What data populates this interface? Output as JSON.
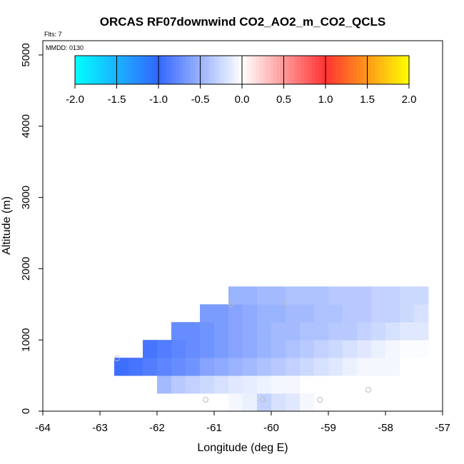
{
  "chart_data": {
    "type": "heatmap",
    "title": "ORCAS RF07downwind CO2_AO2_m_CO2_QCLS",
    "xlabel": "Longitude (deg E)",
    "ylabel": "Altitude (m)",
    "xlim": [
      -64,
      -57
    ],
    "ylim": [
      0,
      5200
    ],
    "x_ticks": [
      -64,
      -63,
      -62,
      -61,
      -60,
      -59,
      -58,
      -57
    ],
    "y_ticks": [
      0,
      1000,
      2000,
      3000,
      4000,
      5000
    ],
    "annotations": {
      "flights": "Flts: 7",
      "date": "MMDD: 0130"
    },
    "colorbar": {
      "range": [
        -2,
        2
      ],
      "ticks": [
        "-2.0",
        "-1.5",
        "-1.0",
        "-0.5",
        "0.0",
        "0.5",
        "1.0",
        "1.5",
        "2.0"
      ],
      "colors": [
        "#00ffff",
        "#3366ff",
        "#ffffff",
        "#ff3333",
        "#ffff00"
      ]
    },
    "cell_size": {
      "lon": 0.25,
      "alt": 250
    },
    "rows": [
      {
        "alt": 0,
        "lon0": -60.75,
        "values": [
          -0.05,
          -0.1,
          -0.3,
          -0.2,
          -0.15,
          -0.05
        ]
      },
      {
        "alt": 250,
        "lon0": -62.0,
        "values": [
          -0.45,
          -0.35,
          -0.3,
          -0.25,
          -0.2,
          -0.15,
          -0.12,
          -0.08,
          -0.05,
          -0.05
        ]
      },
      {
        "alt": 500,
        "lon0": -62.75,
        "values": [
          -0.95,
          -0.9,
          -0.85,
          -0.8,
          -0.75,
          -0.7,
          -0.6,
          -0.55,
          -0.5,
          -0.45,
          -0.4,
          -0.35,
          -0.3,
          -0.25,
          -0.2,
          -0.15,
          -0.1,
          -0.05,
          -0.05,
          -0.05
        ]
      },
      {
        "alt": 750,
        "lon0": -62.25,
        "values": [
          -0.9,
          -0.85,
          -0.8,
          -0.75,
          -0.7,
          -0.65,
          -0.6,
          -0.55,
          -0.5,
          -0.45,
          -0.4,
          -0.35,
          -0.3,
          -0.25,
          -0.2,
          -0.15,
          -0.1,
          -0.05,
          -0.02,
          -0.02
        ]
      },
      {
        "alt": 1000,
        "lon0": -61.75,
        "values": [
          -0.75,
          -0.75,
          -0.7,
          -0.65,
          -0.6,
          -0.55,
          -0.5,
          -0.45,
          -0.45,
          -0.4,
          -0.4,
          -0.35,
          -0.35,
          -0.3,
          -0.25,
          -0.2,
          -0.15,
          -0.15
        ]
      },
      {
        "alt": 1250,
        "lon0": -61.25,
        "values": [
          -0.65,
          -0.65,
          -0.6,
          -0.55,
          -0.5,
          -0.5,
          -0.45,
          -0.45,
          -0.4,
          -0.4,
          -0.35,
          -0.35,
          -0.3,
          -0.3,
          -0.25,
          -0.2
        ]
      },
      {
        "alt": 1500,
        "lon0": -60.75,
        "values": [
          -0.5,
          -0.5,
          -0.45,
          -0.45,
          -0.4,
          -0.4,
          -0.4,
          -0.35,
          -0.35,
          -0.35,
          -0.3,
          -0.3,
          -0.25,
          -0.25
        ]
      }
    ],
    "sample_points": [
      {
        "lon": -62.7,
        "alt": 740
      },
      {
        "lon": -60.7,
        "alt": 1500
      },
      {
        "lon": -59.75,
        "alt": 1510
      },
      {
        "lon": -61.15,
        "alt": 160
      },
      {
        "lon": -60.15,
        "alt": 165
      },
      {
        "lon": -59.15,
        "alt": 160
      },
      {
        "lon": -58.3,
        "alt": 300
      }
    ]
  }
}
